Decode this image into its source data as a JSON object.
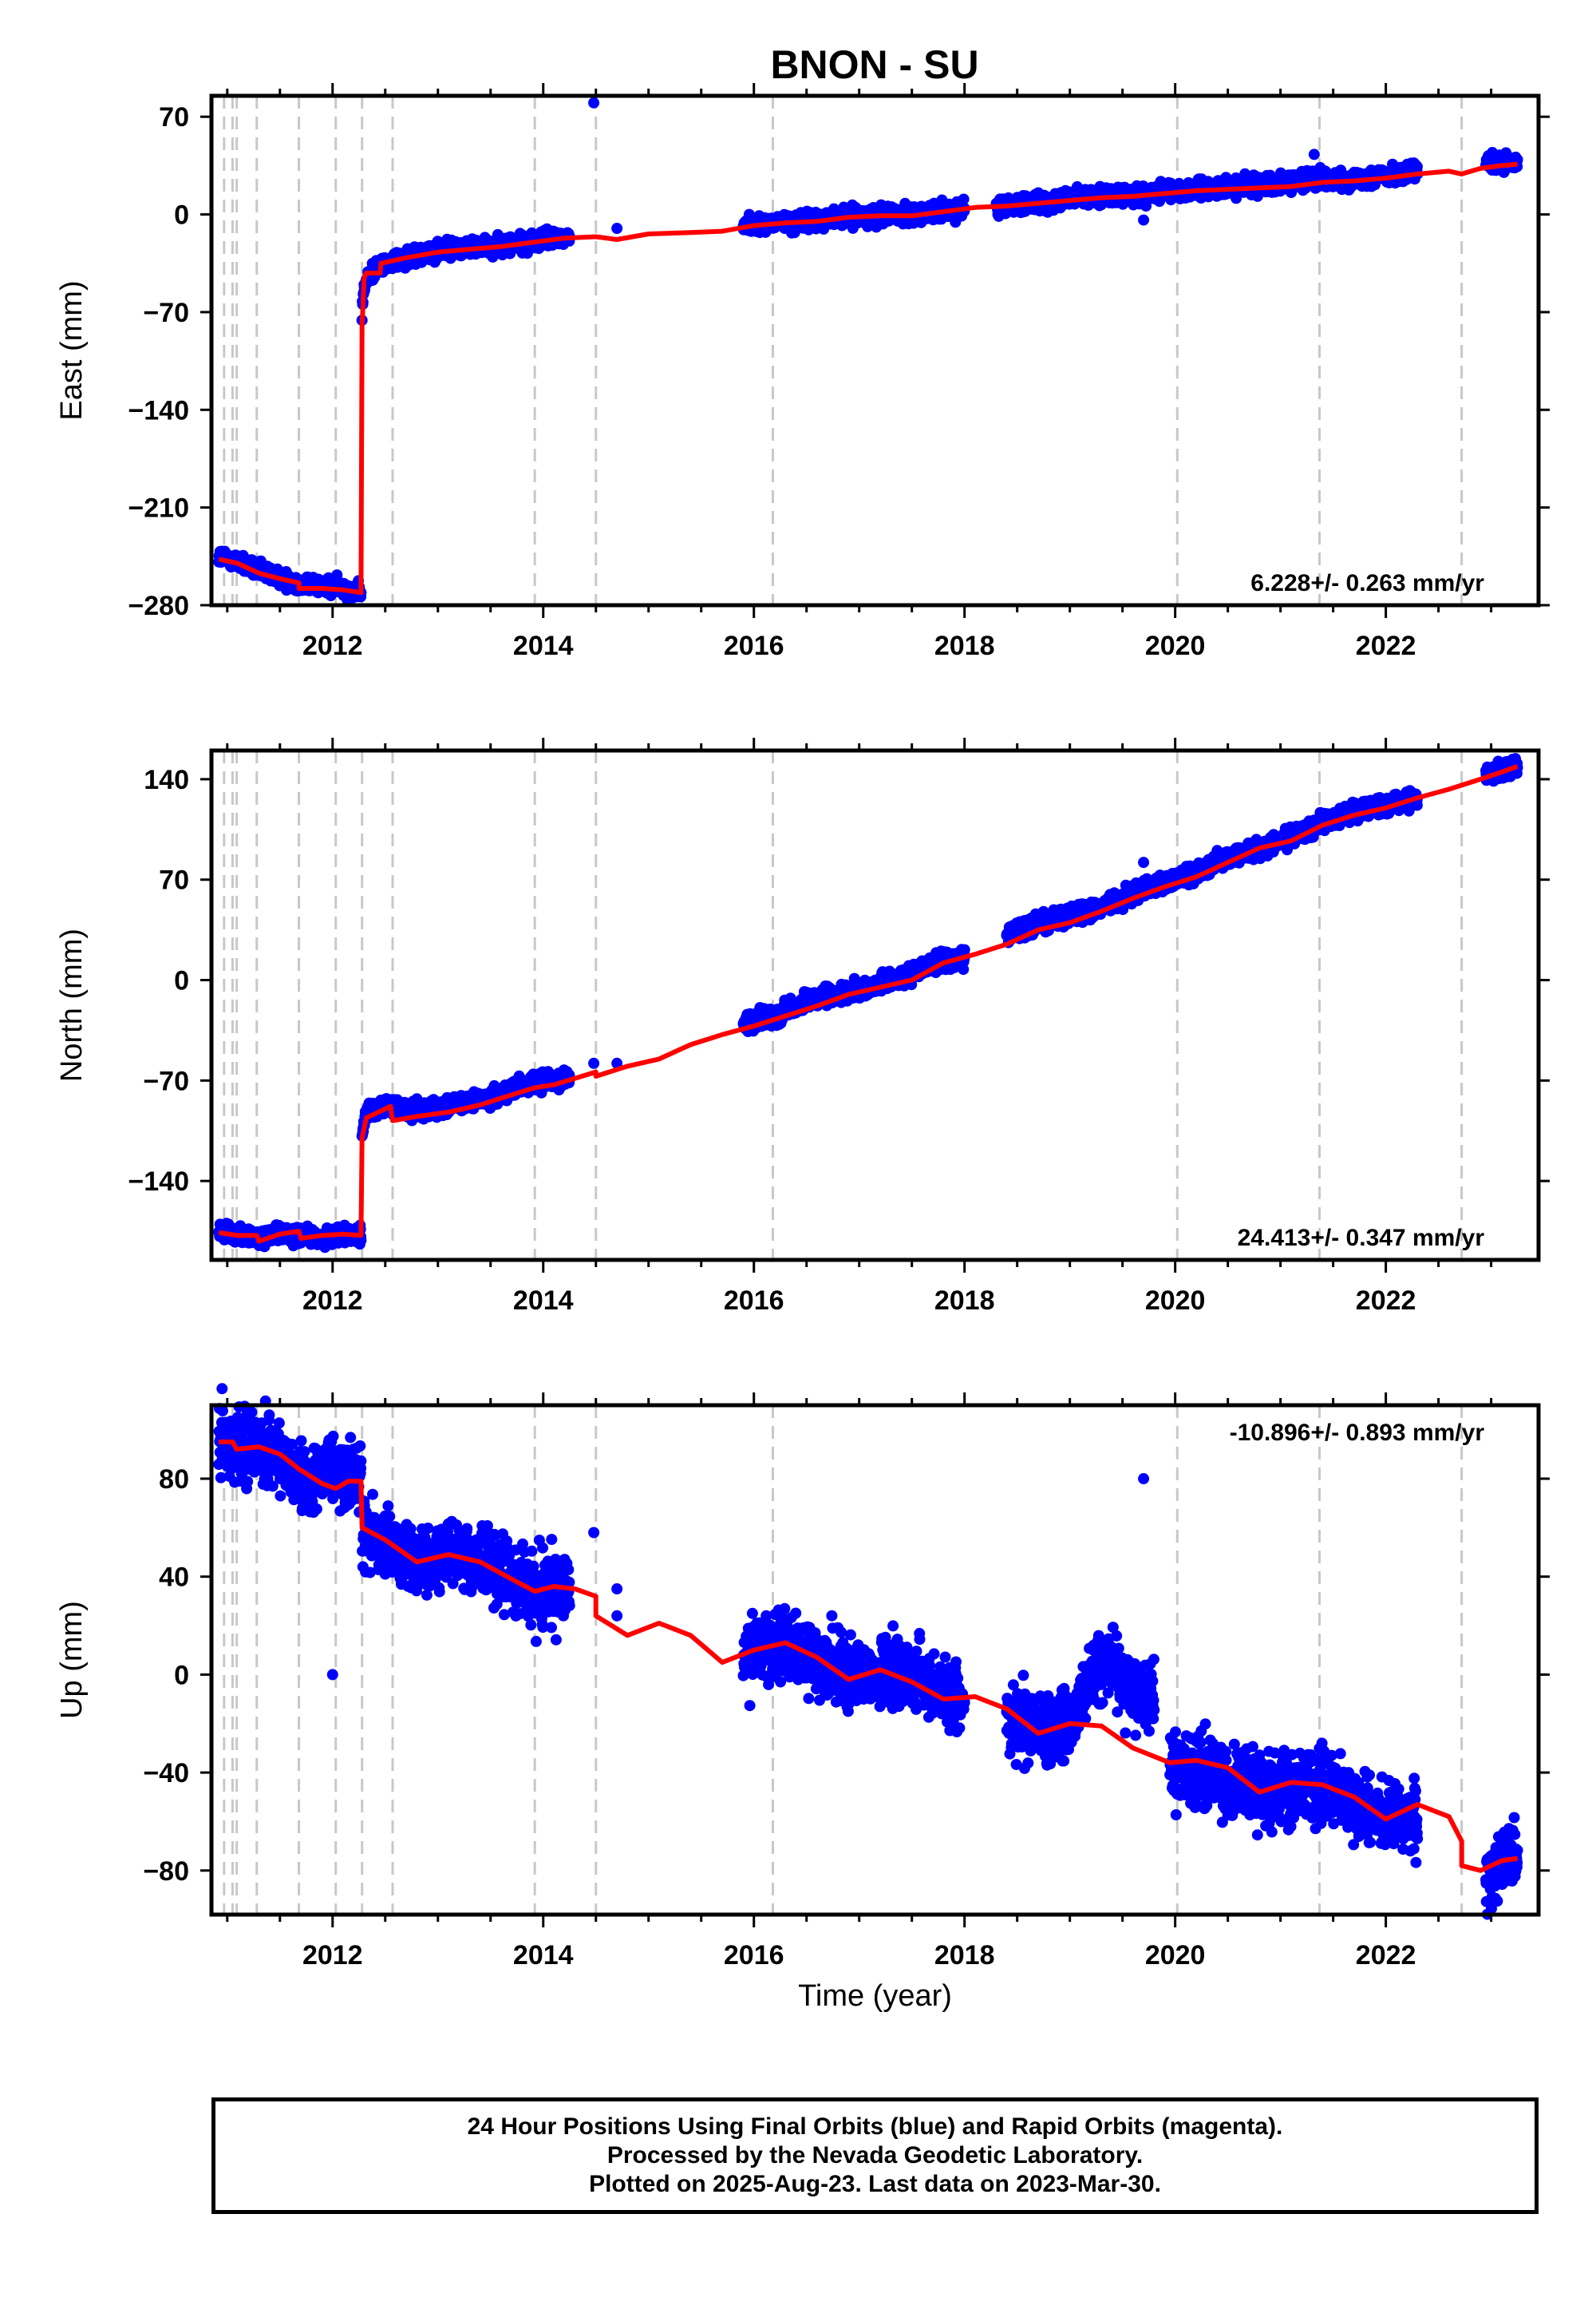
{
  "title": "BNON - SU",
  "colors": {
    "data_points": "#0000ff",
    "model_line": "#ff0000",
    "event_lines": "#c8c8c8",
    "frame": "#000000"
  },
  "x_axis": {
    "label": "Time (year)",
    "range": [
      2010.85,
      2023.45
    ],
    "ticks": [
      "2012",
      "2014",
      "2016",
      "2018",
      "2020",
      "2022"
    ]
  },
  "event_lines_years": [
    2010.97,
    2011.05,
    2011.09,
    2011.28,
    2011.68,
    2012.03,
    2012.28,
    2012.57,
    2013.92,
    2014.5,
    2016.18,
    2020.02,
    2021.37,
    2022.72
  ],
  "chart_data": [
    {
      "type": "scatter",
      "component": "East",
      "ylabel": "East (mm)",
      "ylim": [
        -280,
        85
      ],
      "yticks": [
        "70",
        "0",
        "−70",
        "−140",
        "−210",
        "−280"
      ],
      "velocity_text": "6.228+/- 0.263 mm/yr",
      "series": [
        {
          "role": "daily positions (final orbits)",
          "segments": [
            {
              "x": [
                2010.92,
                2011.1,
                2011.3,
                2011.5,
                2011.7,
                2011.9,
                2012.1,
                2012.27
              ],
              "y": [
                -245,
                -249,
                -256,
                -260,
                -265,
                -266,
                -268,
                -271
              ]
            },
            {
              "x": [
                2012.28,
                2012.3,
                2012.4,
                2012.6,
                2012.8,
                2013.0,
                2013.2,
                2013.5,
                2013.8,
                2014.0,
                2014.25
              ],
              "y": [
                -70,
                -52,
                -38,
                -33,
                -29,
                -26,
                -24,
                -23,
                -21,
                -18,
                -16
              ]
            },
            {
              "x": [
                2015.9,
                2016.2,
                2016.5,
                2016.8,
                2017.1,
                2017.4,
                2017.7,
                2018.0
              ],
              "y": [
                -7,
                -6,
                -5,
                -2,
                -1,
                0,
                1,
                4
              ]
            },
            {
              "x": [
                2018.3,
                2018.6,
                2018.9,
                2019.2,
                2019.5,
                2019.8,
                2020.1,
                2020.4,
                2020.7,
                2021.0,
                2021.3,
                2021.6,
                2021.9,
                2022.2,
                2022.3
              ],
              "y": [
                5,
                7,
                10,
                13,
                13,
                15,
                18,
                19,
                21,
                23,
                25,
                25,
                27,
                30,
                31
              ]
            },
            {
              "x": [
                2022.95,
                2023.1,
                2023.25
              ],
              "y": [
                37,
                36,
                37
              ]
            }
          ],
          "outliers": [
            {
              "x": 2014.48,
              "y": 80
            },
            {
              "x": 2014.7,
              "y": -10
            },
            {
              "x": 2019.7,
              "y": -4
            },
            {
              "x": 2021.32,
              "y": 43
            }
          ]
        },
        {
          "role": "model fit",
          "x": [
            2010.92,
            2011.1,
            2011.3,
            2011.5,
            2011.68,
            2011.68,
            2011.9,
            2012.1,
            2012.27,
            2012.28,
            2012.3,
            2012.32,
            2012.45,
            2012.46,
            2012.7,
            2013.0,
            2013.3,
            2013.6,
            2013.9,
            2014.2,
            2014.5,
            2014.7,
            2015.0,
            2015.4,
            2015.7,
            2016.0,
            2016.3,
            2016.6,
            2016.9,
            2017.2,
            2017.5,
            2017.8,
            2018.1,
            2018.4,
            2018.7,
            2019.0,
            2019.3,
            2019.6,
            2019.9,
            2020.2,
            2020.5,
            2020.8,
            2021.1,
            2021.4,
            2021.7,
            2022.0,
            2022.3,
            2022.6,
            2022.72,
            2022.9,
            2023.1,
            2023.25
          ],
          "y": [
            -247,
            -250,
            -257,
            -261,
            -264,
            -268,
            -268,
            -269,
            -271,
            -80,
            -45,
            -42,
            -42,
            -35,
            -31,
            -27,
            -25,
            -23,
            -20,
            -17,
            -16,
            -18,
            -14,
            -13,
            -12,
            -8,
            -6,
            -5,
            -2,
            -1,
            -1,
            2,
            5,
            6,
            8,
            10,
            12,
            13,
            15,
            17,
            18,
            19,
            20,
            23,
            24,
            26,
            29,
            31,
            29,
            33,
            35,
            36
          ]
        }
      ]
    },
    {
      "type": "scatter",
      "component": "North",
      "ylabel": "North (mm)",
      "ylim": [
        -195,
        160
      ],
      "yticks": [
        "140",
        "70",
        "0",
        "−70",
        "−140"
      ],
      "velocity_text": "24.413+/- 0.347 mm/yr",
      "series": [
        {
          "role": "daily positions (final orbits)",
          "segments": [
            {
              "x": [
                2010.92,
                2011.1,
                2011.3,
                2011.5,
                2011.7,
                2011.9,
                2012.1,
                2012.27
              ],
              "y": [
                -175,
                -178,
                -180,
                -176,
                -178,
                -180,
                -177,
                -178
              ]
            },
            {
              "x": [
                2012.28,
                2012.32,
                2012.5,
                2012.8,
                2013.1,
                2013.4,
                2013.7,
                2014.0,
                2014.25
              ],
              "y": [
                -105,
                -92,
                -88,
                -91,
                -88,
                -84,
                -76,
                -70,
                -68
              ]
            },
            {
              "x": [
                2015.9,
                2016.2,
                2016.5,
                2016.8,
                2017.1,
                2017.4,
                2017.7,
                2018.0
              ],
              "y": [
                -30,
                -25,
                -15,
                -10,
                -5,
                2,
                12,
                15
              ]
            },
            {
              "x": [
                2018.4,
                2018.7,
                2019.0,
                2019.3,
                2019.6,
                2019.9,
                2020.2,
                2020.5,
                2020.8,
                2021.1,
                2021.4,
                2021.7,
                2022.0,
                2022.3
              ],
              "y": [
                32,
                40,
                45,
                50,
                60,
                68,
                75,
                85,
                92,
                100,
                110,
                118,
                122,
                128
              ]
            },
            {
              "x": [
                2022.95,
                2023.1,
                2023.25
              ],
              "y": [
                143,
                146,
                150
              ]
            }
          ],
          "outliers": [
            {
              "x": 2019.7,
              "y": 82
            },
            {
              "x": 2014.48,
              "y": -58
            },
            {
              "x": 2014.7,
              "y": -58
            }
          ]
        },
        {
          "role": "model fit",
          "x": [
            2010.92,
            2011.1,
            2011.28,
            2011.3,
            2011.5,
            2011.68,
            2011.7,
            2011.9,
            2012.1,
            2012.27,
            2012.28,
            2012.32,
            2012.55,
            2012.57,
            2012.8,
            2013.1,
            2013.4,
            2013.7,
            2013.92,
            2014.1,
            2014.5,
            2014.5,
            2014.8,
            2015.1,
            2015.4,
            2015.7,
            2016.0,
            2016.3,
            2016.6,
            2016.9,
            2017.2,
            2017.5,
            2017.8,
            2018.1,
            2018.4,
            2018.7,
            2019.0,
            2019.3,
            2019.6,
            2019.9,
            2020.2,
            2020.5,
            2020.8,
            2021.1,
            2021.4,
            2021.7,
            2022.0,
            2022.3,
            2022.6,
            2022.9,
            2023.1,
            2023.25
          ],
          "y": [
            -176,
            -178,
            -178,
            -182,
            -177,
            -175,
            -180,
            -178,
            -177,
            -178,
            -110,
            -96,
            -88,
            -98,
            -95,
            -92,
            -87,
            -80,
            -75,
            -73,
            -64,
            -67,
            -60,
            -55,
            -45,
            -38,
            -32,
            -25,
            -18,
            -10,
            -5,
            0,
            12,
            18,
            25,
            35,
            40,
            48,
            57,
            65,
            72,
            82,
            92,
            97,
            108,
            115,
            120,
            127,
            133,
            140,
            145,
            149
          ]
        }
      ]
    },
    {
      "type": "scatter",
      "component": "Up",
      "ylabel": "Up (mm)",
      "ylim": [
        -98,
        110
      ],
      "yticks": [
        "80",
        "40",
        "0",
        "−40",
        "−80"
      ],
      "velocity_text": "-10.896+/- 0.893 mm/yr",
      "series": [
        {
          "role": "daily positions (final orbits)",
          "segments": [
            {
              "x": [
                2010.92,
                2011.1,
                2011.3,
                2011.5,
                2011.7,
                2011.9,
                2012.1,
                2012.27
              ],
              "y": [
                96,
                96,
                92,
                88,
                82,
                80,
                82,
                80
              ]
            },
            {
              "x": [
                2012.28,
                2012.5,
                2012.8,
                2013.1,
                2013.4,
                2013.7,
                2014.0,
                2014.25
              ],
              "y": [
                60,
                52,
                46,
                48,
                46,
                40,
                34,
                36
              ]
            },
            {
              "x": [
                2015.9,
                2016.2,
                2016.5,
                2016.8,
                2017.1,
                2017.4,
                2017.7,
                2018.0
              ],
              "y": [
                6,
                12,
                8,
                2,
                0,
                0,
                -5,
                -12
              ]
            },
            {
              "x": [
                2018.4,
                2018.7,
                2019.0,
                2019.2,
                2019.4,
                2019.6,
                2019.8
              ],
              "y": [
                -18,
                -22,
                -20,
                0,
                4,
                -8,
                -8
              ]
            },
            {
              "x": [
                2019.95,
                2020.2,
                2020.5,
                2020.8,
                2021.1,
                2021.4,
                2021.7,
                2022.0,
                2022.3
              ],
              "y": [
                -36,
                -40,
                -42,
                -48,
                -45,
                -46,
                -52,
                -58,
                -58
              ]
            },
            {
              "x": [
                2022.95,
                2023.05,
                2023.25
              ],
              "y": [
                -82,
                -78,
                -72
              ]
            }
          ],
          "outliers": [
            {
              "x": 2019.7,
              "y": 80
            },
            {
              "x": 2012.0,
              "y": 0
            },
            {
              "x": 2014.48,
              "y": 58
            },
            {
              "x": 2014.7,
              "y": 24
            },
            {
              "x": 2014.7,
              "y": 35
            }
          ]
        },
        {
          "role": "model fit",
          "x": [
            2010.92,
            2011.05,
            2011.09,
            2011.3,
            2011.5,
            2011.68,
            2011.9,
            2012.03,
            2012.15,
            2012.27,
            2012.28,
            2012.5,
            2012.8,
            2013.1,
            2013.4,
            2013.7,
            2013.92,
            2014.1,
            2014.3,
            2014.5,
            2014.5,
            2014.8,
            2015.1,
            2015.4,
            2015.7,
            2016.0,
            2016.3,
            2016.6,
            2016.9,
            2017.2,
            2017.5,
            2017.8,
            2018.1,
            2018.4,
            2018.7,
            2019.0,
            2019.3,
            2019.6,
            2019.95,
            2020.2,
            2020.5,
            2020.8,
            2021.1,
            2021.4,
            2021.7,
            2022.0,
            2022.3,
            2022.6,
            2022.72,
            2022.72,
            2022.9,
            2023.1,
            2023.25
          ],
          "y": [
            95,
            95,
            92,
            93,
            90,
            84,
            78,
            76,
            79,
            79,
            60,
            55,
            46,
            49,
            46,
            39,
            34,
            36,
            35,
            32,
            24,
            16,
            21,
            16,
            5,
            10,
            13,
            7,
            -2,
            2,
            -3,
            -10,
            -9,
            -14,
            -24,
            -20,
            -21,
            -30,
            -36,
            -35,
            -38,
            -48,
            -44,
            -45,
            -50,
            -59,
            -53,
            -58,
            -68,
            -78,
            -80,
            -76,
            -75
          ]
        }
      ]
    }
  ],
  "footer": {
    "line1": "24 Hour Positions Using Final Orbits (blue) and Rapid Orbits (magenta).",
    "line2": "Processed by the Nevada Geodetic Laboratory.",
    "line3": "Plotted on 2025-Aug-23. Last data on 2023-Mar-30."
  }
}
